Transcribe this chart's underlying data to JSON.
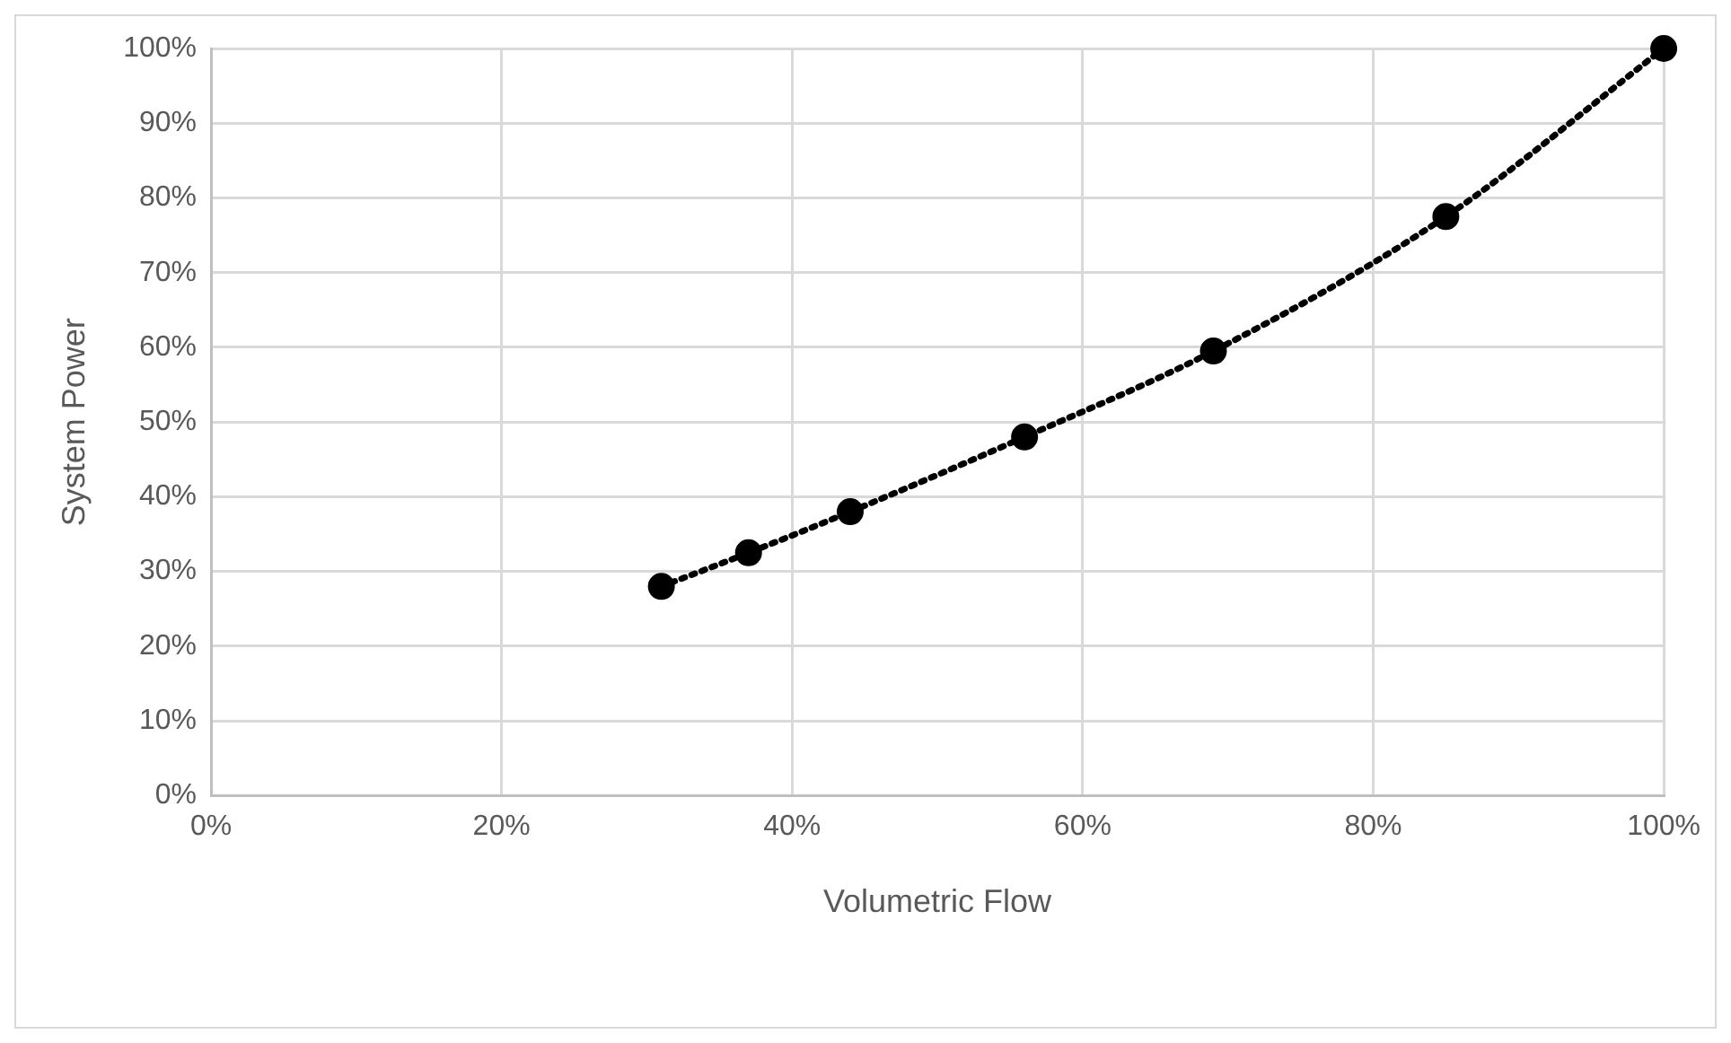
{
  "chart_data": {
    "type": "scatter",
    "xlabel": "Volumetric Flow",
    "ylabel": "System Power",
    "xlim": [
      0,
      100
    ],
    "xticks": [
      {
        "value": 0,
        "label": "0%"
      },
      {
        "value": 20,
        "label": "20%"
      },
      {
        "value": 40,
        "label": "40%"
      },
      {
        "value": 60,
        "label": "60%"
      },
      {
        "value": 80,
        "label": "80%"
      },
      {
        "value": 100,
        "label": "100%"
      }
    ],
    "ylim": [
      0,
      100
    ],
    "yticks": [
      {
        "value": 0,
        "label": "0%"
      },
      {
        "value": 10,
        "label": "10%"
      },
      {
        "value": 20,
        "label": "20%"
      },
      {
        "value": 30,
        "label": "30%"
      },
      {
        "value": 40,
        "label": "40%"
      },
      {
        "value": 50,
        "label": "50%"
      },
      {
        "value": 60,
        "label": "60%"
      },
      {
        "value": 70,
        "label": "70%"
      },
      {
        "value": 80,
        "label": "80%"
      },
      {
        "value": 90,
        "label": "90%"
      },
      {
        "value": 100,
        "label": "100%"
      }
    ],
    "grid": true,
    "series": [
      {
        "type": "line",
        "color": "#000000",
        "line_style": "dotted",
        "marker": "none",
        "x": [
          31,
          37,
          44,
          56,
          69,
          85,
          100
        ],
        "values": [
          28,
          32.5,
          38,
          48,
          59.5,
          77.5,
          100
        ]
      },
      {
        "color": "#000000",
        "marker": "circle",
        "x": [
          31,
          37,
          44,
          56,
          69,
          85,
          100
        ],
        "values": [
          28,
          32.5,
          38,
          48,
          59.5,
          77.5,
          100
        ]
      }
    ]
  }
}
